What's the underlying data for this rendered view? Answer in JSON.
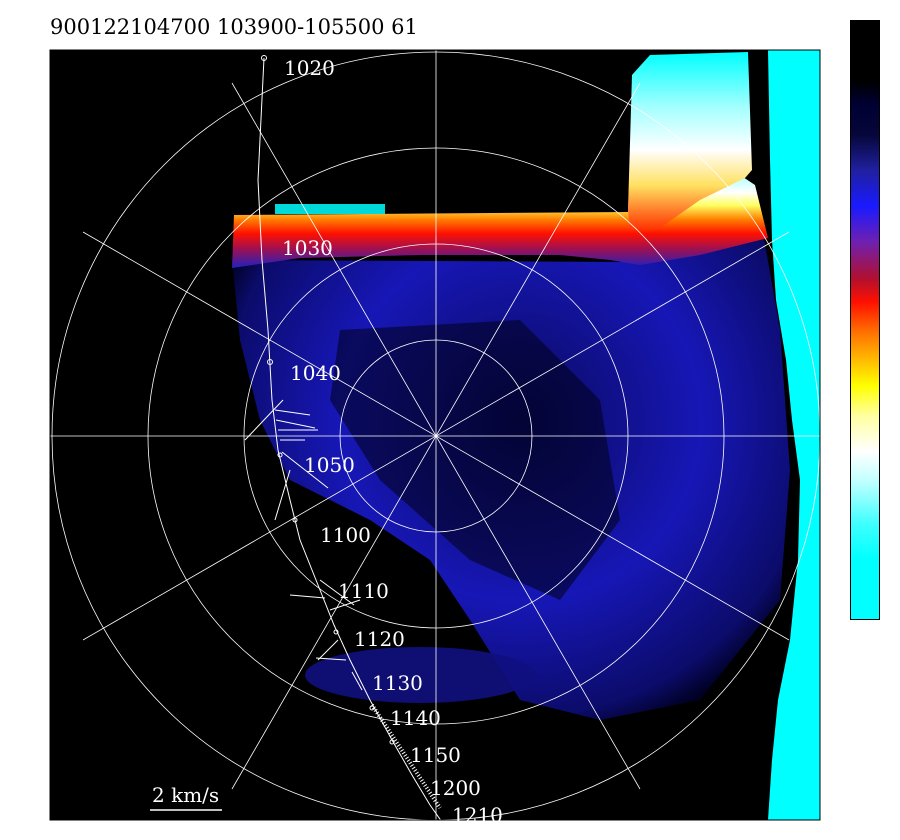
{
  "header": {
    "title": "900122104700 103900-105500 61"
  },
  "colors": {
    "background": "#000000",
    "echo_strong": "#ffffff",
    "echo_band": "#ff2000",
    "echo_weak": "#1a1aff",
    "clutter": "#00ffff",
    "grid": "#ffffff"
  },
  "colorbar": {
    "name": "intensity-colorbar",
    "labels": []
  },
  "chart_data": {
    "type": "heatmap",
    "title": "900122104700 103900-105500 61",
    "projection": "polar (plan position indicator)",
    "range_rings": 4,
    "radial_spokes_deg": 30,
    "grid": true,
    "scale_bar": {
      "label": "2 km/s"
    },
    "track_times": [
      "1020",
      "1030",
      "1040",
      "1050",
      "1100",
      "1110",
      "1120",
      "1130",
      "1140",
      "1150",
      "1200",
      "1210"
    ],
    "features": [
      {
        "name": "echo-band",
        "description_color": "white/red leading edge over blue echo"
      },
      {
        "name": "clutter-edge",
        "description_color": "cyan"
      }
    ]
  }
}
